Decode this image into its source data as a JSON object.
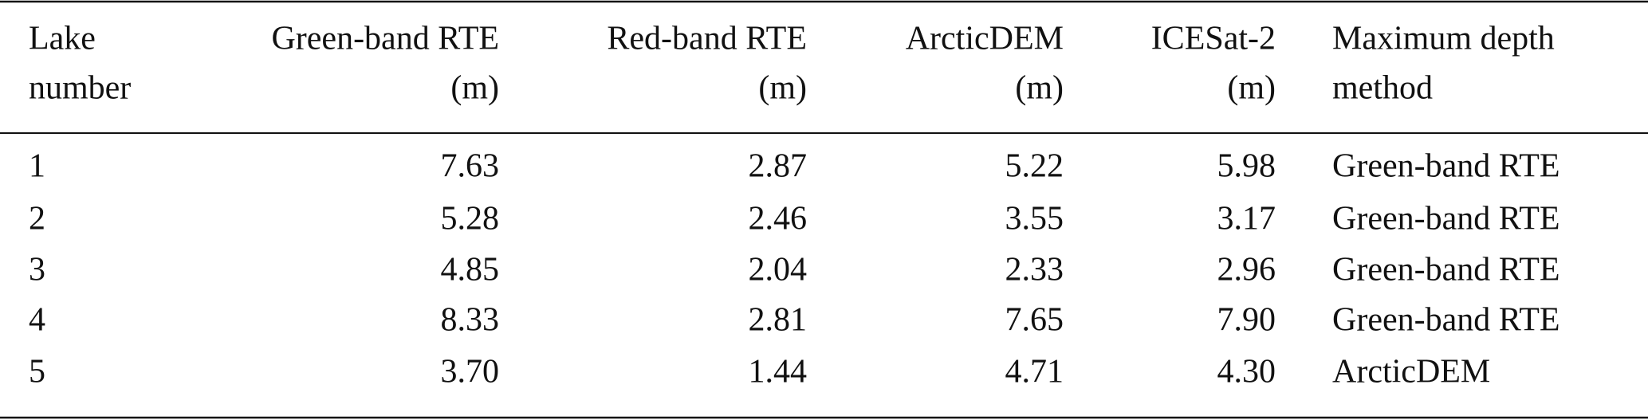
{
  "table": {
    "header": [
      [
        "Lake",
        "number"
      ],
      [
        "Green-band RTE",
        "(m)"
      ],
      [
        "Red-band RTE",
        "(m)"
      ],
      [
        "ArcticDEM",
        "(m)"
      ],
      [
        "ICESat-2",
        "(m)"
      ],
      [
        "Maximum depth",
        "method"
      ]
    ],
    "rows": [
      [
        "1",
        "7.63",
        "2.87",
        "5.22",
        "5.98",
        "Green-band RTE"
      ],
      [
        "2",
        "5.28",
        "2.46",
        "3.55",
        "3.17",
        "Green-band RTE"
      ],
      [
        "3",
        "4.85",
        "2.04",
        "2.33",
        "2.96",
        "Green-band RTE"
      ],
      [
        "4",
        "8.33",
        "2.81",
        "7.65",
        "7.90",
        "Green-band RTE"
      ],
      [
        "5",
        "3.70",
        "1.44",
        "4.71",
        "4.30",
        "ArcticDEM"
      ]
    ]
  }
}
